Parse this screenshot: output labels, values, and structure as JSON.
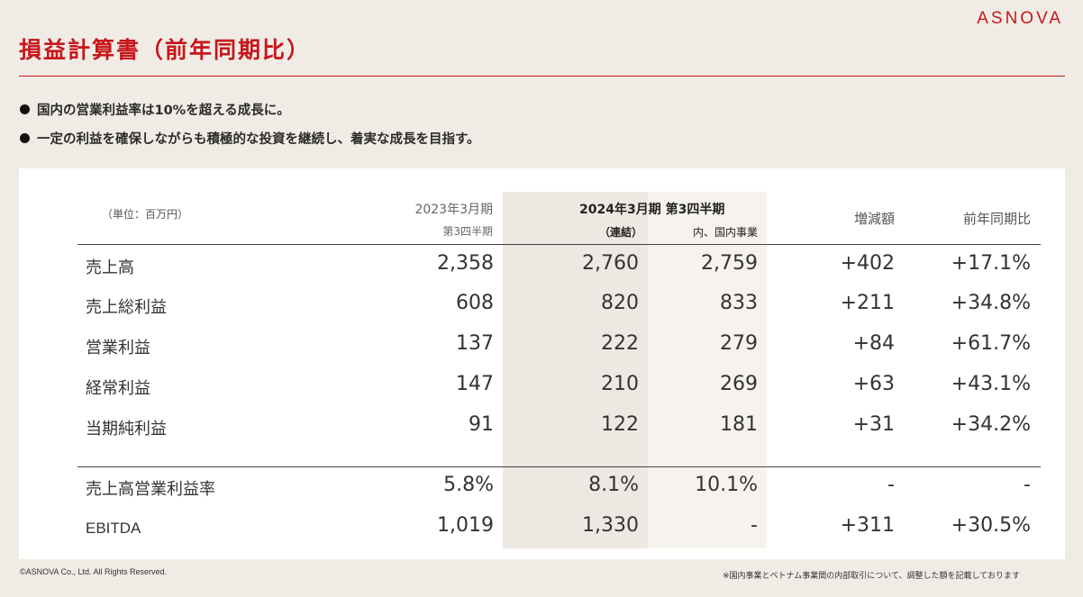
{
  "brand": {
    "logo_text": "ASNOVA",
    "accent_color": "#c8161d"
  },
  "title": "損益計算書（前年同期比）",
  "bullets": [
    "国内の営業利益率は10%を超える成長に。",
    "一定の利益を確保しながらも積極的な投資を継続し、着実な成長を目指す。"
  ],
  "table": {
    "unit_label": "（単位：百万円）",
    "headers": {
      "prev_period": "2023年3月期",
      "prev_quarter": "第3四半期",
      "current_period": "2024年3月期 第3四半期",
      "consolidated": "（連結）",
      "domestic": "内、国内事業",
      "change": "増減額",
      "yoy": "前年同期比"
    },
    "rows": [
      {
        "label": "売上高",
        "prev": "2,358",
        "consolidated": "2,760",
        "domestic": "2,759",
        "change": "+402",
        "yoy": "+17.1%"
      },
      {
        "label": "売上総利益",
        "prev": "608",
        "consolidated": "820",
        "domestic": "833",
        "change": "+211",
        "yoy": "+34.8%"
      },
      {
        "label": "営業利益",
        "prev": "137",
        "consolidated": "222",
        "domestic": "279",
        "change": "+84",
        "yoy": "+61.7%"
      },
      {
        "label": "経常利益",
        "prev": "147",
        "consolidated": "210",
        "domestic": "269",
        "change": "+63",
        "yoy": "+43.1%"
      },
      {
        "label": "当期純利益",
        "prev": "91",
        "consolidated": "122",
        "domestic": "181",
        "change": "+31",
        "yoy": "+34.2%"
      }
    ],
    "extra_rows": [
      {
        "label": "売上高営業利益率",
        "prev": "5.8%",
        "consolidated": "8.1%",
        "domestic": "10.1%",
        "change": "-",
        "yoy": "-"
      },
      {
        "label": "EBITDA",
        "prev": "1,019",
        "consolidated": "1,330",
        "domestic": "-",
        "change": "+311",
        "yoy": "+30.5%"
      }
    ]
  },
  "footer": {
    "copyright": "©ASNOVA Co., Ltd. All Rights Reserved.",
    "note": "※国内事業とベトナム事業間の内部取引について、調整した額を記載しております"
  }
}
